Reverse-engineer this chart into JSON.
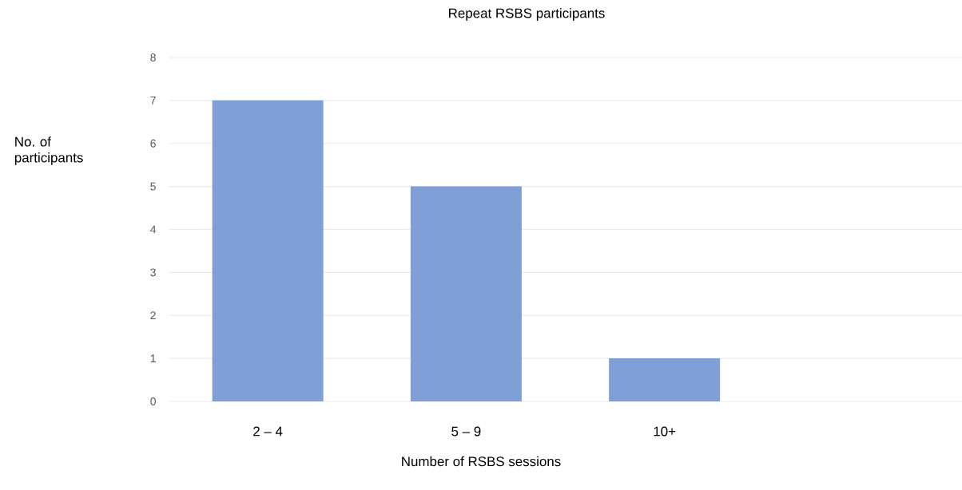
{
  "chart_data": {
    "type": "bar",
    "title": "Repeat RSBS participants",
    "xlabel": "Number of RSBS sessions",
    "ylabel": "No. of participants",
    "categories": [
      "2 – 4",
      "5 – 9",
      "10+",
      null
    ],
    "values": [
      7,
      5,
      1,
      null
    ],
    "color": "#7f9fd6",
    "ylim": [
      0,
      8
    ],
    "yticks": [
      0,
      1,
      2,
      3,
      4,
      5,
      6,
      7,
      8
    ],
    "grid": "y"
  }
}
